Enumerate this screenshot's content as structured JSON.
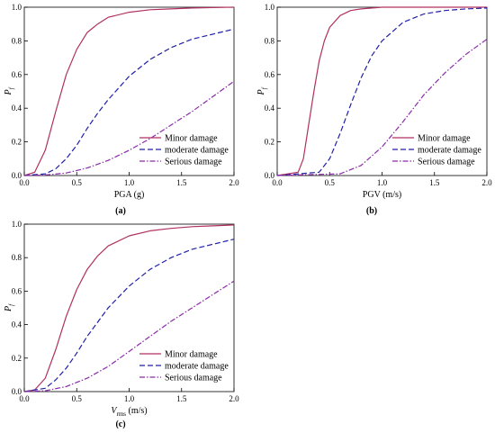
{
  "colors": {
    "minor": "#b03060",
    "moderate": "#1f1fa8",
    "serious": "#8a2aa8"
  },
  "chart_data": [
    {
      "type": "line",
      "panel_label": "(a)",
      "xlabel": "PGA (g)",
      "ylabel": "P",
      "ylabel_sub": "f",
      "xlabel_sub": "",
      "xlabel_tail": "",
      "xlim": [
        0,
        2.0
      ],
      "ylim": [
        0,
        1.0
      ],
      "xticks": [
        "0.0",
        "0.5",
        "1.0",
        "1.5",
        "2.0"
      ],
      "yticks": [
        "0.0",
        "0.2",
        "0.4",
        "0.6",
        "0.8",
        "1.0"
      ],
      "legend_position": "lower-right",
      "series": [
        {
          "name": "Minor damage",
          "style": "solid",
          "color_key": "minor",
          "x": [
            0.0,
            0.1,
            0.2,
            0.3,
            0.4,
            0.5,
            0.6,
            0.7,
            0.8,
            1.0,
            1.2,
            1.4,
            1.6,
            1.8,
            2.0
          ],
          "y": [
            0.0,
            0.02,
            0.15,
            0.38,
            0.6,
            0.75,
            0.85,
            0.9,
            0.94,
            0.97,
            0.985,
            0.99,
            0.995,
            0.998,
            1.0
          ]
        },
        {
          "name": "moderate damage",
          "style": "dashed",
          "color_key": "moderate",
          "x": [
            0.0,
            0.2,
            0.3,
            0.4,
            0.5,
            0.6,
            0.7,
            0.8,
            1.0,
            1.2,
            1.4,
            1.6,
            1.8,
            2.0
          ],
          "y": [
            0.0,
            0.01,
            0.04,
            0.1,
            0.18,
            0.28,
            0.37,
            0.45,
            0.59,
            0.69,
            0.76,
            0.81,
            0.84,
            0.87
          ]
        },
        {
          "name": "Serious damage",
          "style": "dashdot",
          "color_key": "serious",
          "x": [
            0.0,
            0.2,
            0.4,
            0.6,
            0.8,
            1.0,
            1.2,
            1.4,
            1.6,
            1.8,
            2.0
          ],
          "y": [
            0.0,
            0.003,
            0.015,
            0.045,
            0.09,
            0.15,
            0.22,
            0.3,
            0.38,
            0.47,
            0.56
          ]
        }
      ]
    },
    {
      "type": "line",
      "panel_label": "(b)",
      "xlabel": "PGV (m/s)",
      "ylabel": "P",
      "ylabel_sub": "f",
      "xlabel_sub": "",
      "xlabel_tail": "",
      "xlim": [
        0,
        2.0
      ],
      "ylim": [
        0,
        1.0
      ],
      "xticks": [
        "0.0",
        "0.5",
        "1.0",
        "1.5",
        "2.0"
      ],
      "yticks": [
        "0.0",
        "0.2",
        "0.4",
        "0.6",
        "0.8",
        "1.0"
      ],
      "legend_position": "lower-right",
      "series": [
        {
          "name": "Minor damage",
          "style": "solid",
          "color_key": "minor",
          "x": [
            0.0,
            0.2,
            0.25,
            0.3,
            0.35,
            0.4,
            0.45,
            0.5,
            0.6,
            0.7,
            0.8,
            1.0,
            1.5,
            2.0
          ],
          "y": [
            0.0,
            0.02,
            0.1,
            0.3,
            0.5,
            0.68,
            0.8,
            0.88,
            0.95,
            0.98,
            0.99,
            1.0,
            1.0,
            1.0
          ]
        },
        {
          "name": "moderate damage",
          "style": "dashed",
          "color_key": "moderate",
          "x": [
            0.0,
            0.4,
            0.5,
            0.6,
            0.7,
            0.8,
            0.9,
            1.0,
            1.2,
            1.4,
            1.6,
            1.8,
            2.0
          ],
          "y": [
            0.0,
            0.02,
            0.1,
            0.25,
            0.42,
            0.58,
            0.71,
            0.8,
            0.91,
            0.96,
            0.98,
            0.99,
            0.995
          ]
        },
        {
          "name": "Serious damage",
          "style": "dashdot",
          "color_key": "serious",
          "x": [
            0.0,
            0.6,
            0.8,
            1.0,
            1.2,
            1.4,
            1.6,
            1.8,
            2.0
          ],
          "y": [
            0.0,
            0.01,
            0.06,
            0.17,
            0.32,
            0.48,
            0.61,
            0.72,
            0.81
          ]
        }
      ]
    },
    {
      "type": "line",
      "panel_label": "(c)",
      "xlabel": "V",
      "xlabel_sub": "rms",
      "xlabel_tail": " (m/s)",
      "ylabel": "P",
      "ylabel_sub": "f",
      "xlim": [
        0,
        2.0
      ],
      "ylim": [
        0,
        1.0
      ],
      "xticks": [
        "0.0",
        "0.5",
        "1.0",
        "1.5",
        "2.0"
      ],
      "yticks": [
        "0.0",
        "0.2",
        "0.4",
        "0.6",
        "0.8",
        "1.0"
      ],
      "legend_position": "lower-right",
      "series": [
        {
          "name": "Minor damage",
          "style": "solid",
          "color_key": "minor",
          "x": [
            0.0,
            0.1,
            0.2,
            0.3,
            0.4,
            0.5,
            0.6,
            0.7,
            0.8,
            1.0,
            1.2,
            1.4,
            1.6,
            1.8,
            2.0
          ],
          "y": [
            0.0,
            0.01,
            0.08,
            0.25,
            0.45,
            0.61,
            0.73,
            0.81,
            0.87,
            0.93,
            0.96,
            0.975,
            0.985,
            0.99,
            0.995
          ]
        },
        {
          "name": "moderate damage",
          "style": "dashed",
          "color_key": "moderate",
          "x": [
            0.0,
            0.2,
            0.3,
            0.4,
            0.5,
            0.6,
            0.8,
            1.0,
            1.2,
            1.4,
            1.6,
            1.8,
            2.0
          ],
          "y": [
            0.0,
            0.02,
            0.07,
            0.14,
            0.23,
            0.33,
            0.5,
            0.63,
            0.73,
            0.8,
            0.85,
            0.88,
            0.91
          ]
        },
        {
          "name": "Serious damage",
          "style": "dashdot",
          "color_key": "serious",
          "x": [
            0.0,
            0.2,
            0.4,
            0.6,
            0.8,
            1.0,
            1.2,
            1.4,
            1.6,
            1.8,
            2.0
          ],
          "y": [
            0.0,
            0.005,
            0.03,
            0.08,
            0.15,
            0.24,
            0.33,
            0.42,
            0.5,
            0.58,
            0.66
          ]
        }
      ]
    }
  ]
}
